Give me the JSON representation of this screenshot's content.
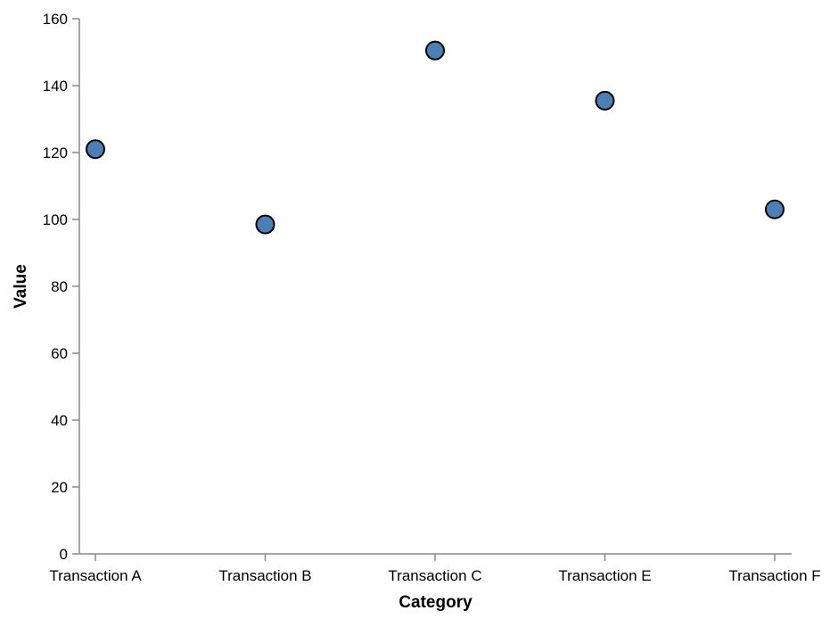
{
  "chart_data": {
    "type": "scatter",
    "categories": [
      "Transaction A",
      "Transaction B",
      "Transaction C",
      "Transaction E",
      "Transaction F"
    ],
    "values": [
      121,
      98.5,
      150.5,
      135.5,
      103
    ],
    "title": "",
    "xlabel": "Category",
    "ylabel": "Value",
    "ylim": [
      0,
      160
    ],
    "yticks": [
      0,
      20,
      40,
      60,
      80,
      100,
      120,
      140,
      160
    ],
    "grid": false,
    "legend": "none",
    "point_color": "#4c7fb5"
  }
}
